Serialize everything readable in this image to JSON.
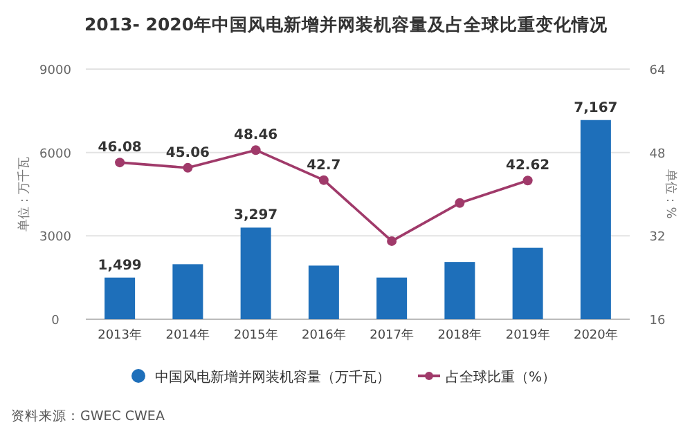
{
  "chart_data": {
    "type": "bar",
    "title": "2013- 2020年中国风电新增并网装机容量及占全球比重变化情况",
    "categories": [
      "2013年",
      "2014年",
      "2015年",
      "2016年",
      "2017年",
      "2018年",
      "2019年",
      "2020年"
    ],
    "series": [
      {
        "name": "中国风电新增并网装机容量（万千瓦）",
        "color": "#1e6fba",
        "values": [
          1499,
          1980,
          3297,
          1930,
          1500,
          2060,
          2570,
          7167
        ],
        "value_labels": [
          "1,499",
          null,
          "3,297",
          null,
          null,
          null,
          null,
          "7,167"
        ]
      },
      {
        "name": "占全球比重（%）",
        "type": "line",
        "axis": "y2",
        "color": "#a03a6a",
        "values": [
          46.08,
          45.06,
          48.46,
          42.7,
          31,
          38.3,
          42.62,
          null
        ],
        "value_labels": [
          "46.08",
          "45.06",
          "48.46",
          "42.7",
          null,
          null,
          "42.62",
          null
        ]
      }
    ],
    "ylim": [
      0,
      9000
    ],
    "yticks": [
      0,
      3000,
      6000,
      9000
    ],
    "y2lim": [
      16,
      64
    ],
    "y2ticks": [
      16,
      32,
      48,
      64
    ],
    "ylabel": "单位：万千瓦",
    "y2label": "单位：%",
    "grid": "y",
    "legend": "bottom",
    "marker": "circle",
    "annotations": [
      "资料来源：GWEC CWEA"
    ]
  }
}
